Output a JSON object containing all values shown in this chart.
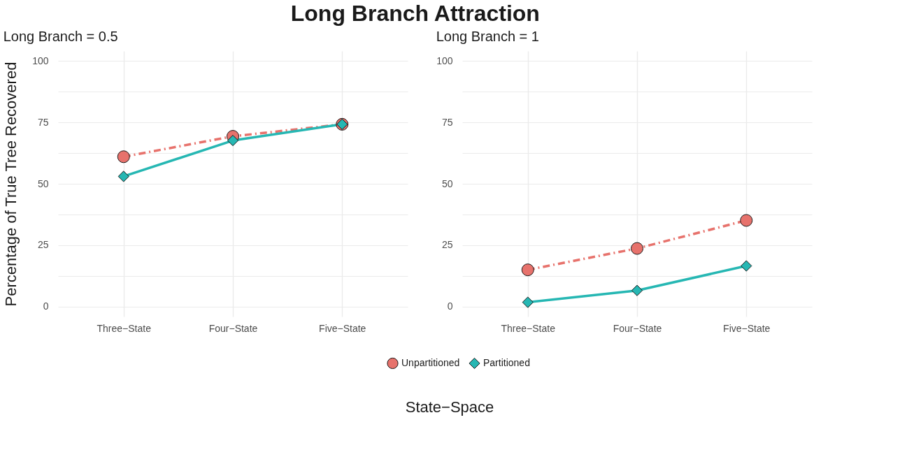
{
  "chart_data": [
    {
      "type": "line",
      "title": "Long Branch Attraction",
      "subtitle": "Long Branch = 0.5",
      "xlabel": "State−Space",
      "ylabel": "Percentage of True Tree Recovered",
      "categories": [
        "Three−State",
        "Four−State",
        "Five−State"
      ],
      "series": [
        {
          "name": "Unpartitioned",
          "color": "#e7726c",
          "marker": "circle",
          "line_style": "dashed",
          "values": [
            61,
            69.3,
            74.2
          ]
        },
        {
          "name": "Partitioned",
          "color": "#26b7b3",
          "marker": "diamond",
          "line_style": "solid",
          "values": [
            53,
            67.6,
            74.2
          ]
        }
      ],
      "ylim": [
        -4,
        104
      ],
      "yticks": [
        0,
        {
          "value": 12.5,
          "label": null
        },
        25,
        {
          "value": 37.5,
          "label": null
        },
        50,
        {
          "value": 62.5,
          "label": null
        },
        75,
        {
          "value": 87.5,
          "label": null
        },
        100
      ],
      "grid": true,
      "legend": "bottom"
    },
    {
      "type": "line",
      "subtitle": "Long Branch = 1",
      "categories": [
        "Three−State",
        "Four−State",
        "Five−State"
      ],
      "series": [
        {
          "name": "Unpartitioned",
          "color": "#e7726c",
          "marker": "circle",
          "line_style": "dashed",
          "values": [
            15,
            23.7,
            35.1
          ]
        },
        {
          "name": "Partitioned",
          "color": "#26b7b3",
          "marker": "diamond",
          "line_style": "solid",
          "values": [
            1.8,
            6.6,
            16.6
          ]
        }
      ],
      "ylim": [
        -4,
        104
      ],
      "yticks": [
        0,
        {
          "value": 12.5,
          "label": null
        },
        25,
        {
          "value": 37.5,
          "label": null
        },
        50,
        {
          "value": 62.5,
          "label": null
        },
        75,
        {
          "value": 87.5,
          "label": null
        },
        100
      ],
      "grid": true,
      "legend": "bottom"
    }
  ]
}
